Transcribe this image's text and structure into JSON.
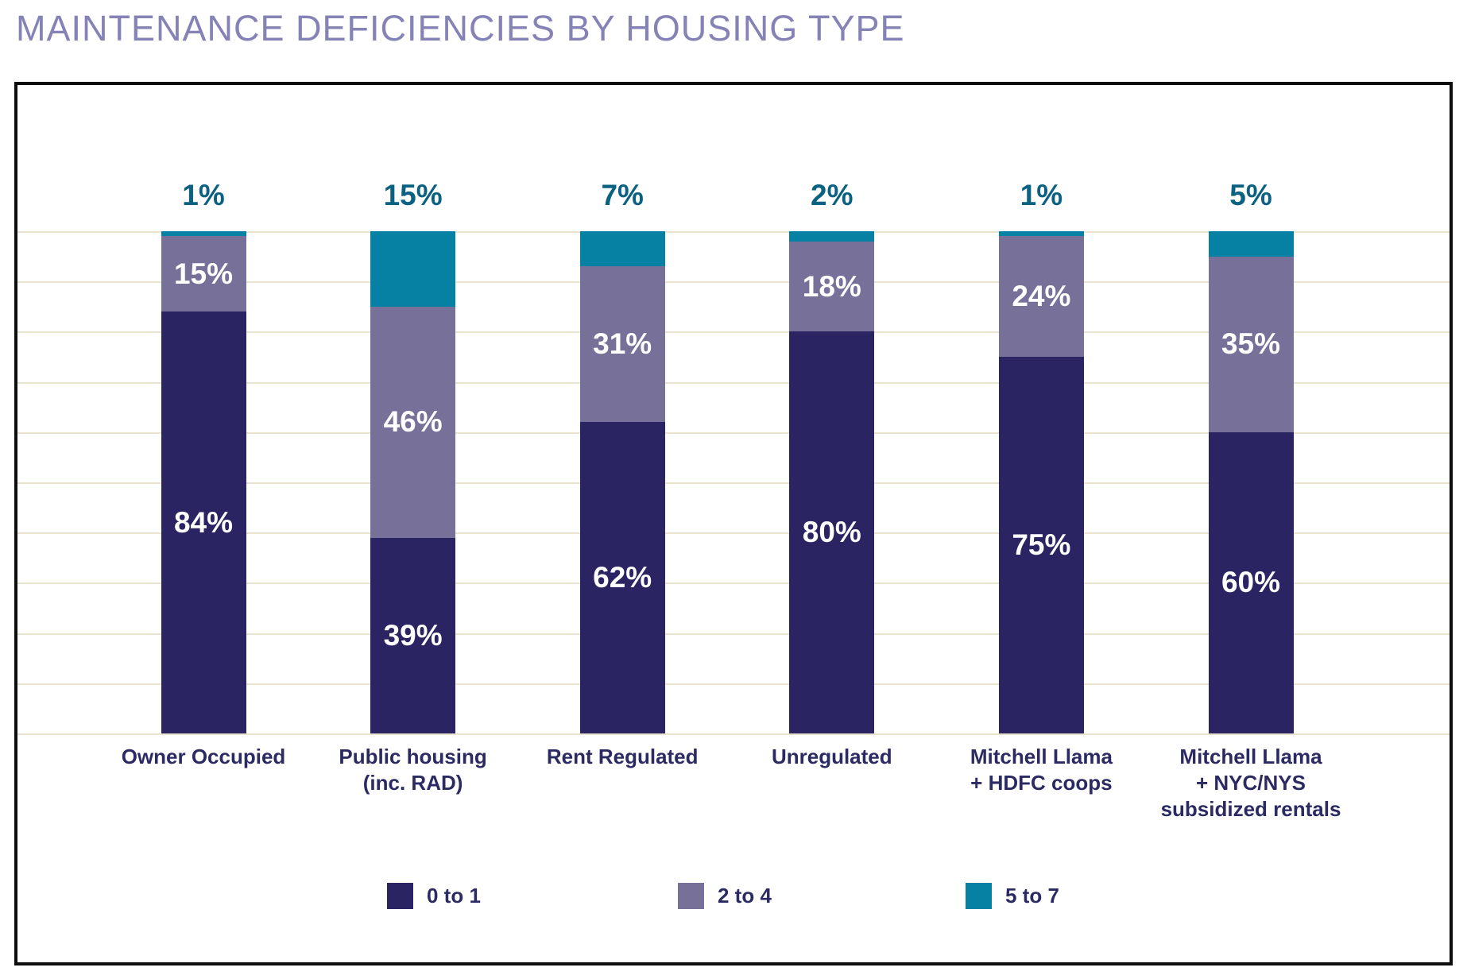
{
  "title": "MAINTENANCE DEFICIENCIES BY HOUSING TYPE",
  "colors": {
    "title_text": "#8583b5",
    "axis_label_text": "#2b2a63",
    "segment_label_text": "#ffffff",
    "above_bar_label_text": "#0b6181",
    "gridline": "#e9e3d0",
    "frame_border": "#0d0d0d",
    "background": "#ffffff"
  },
  "chart_data": {
    "type": "bar",
    "stacked": true,
    "title": "MAINTENANCE DEFICIENCIES BY HOUSING TYPE",
    "xlabel": "",
    "ylabel": "",
    "ylim": [
      0,
      100
    ],
    "gridline_interval": 10,
    "grid": true,
    "legend_position": "bottom",
    "value_suffix": "%",
    "categories": [
      "Owner Occupied",
      "Public housing\n(inc. RAD)",
      "Rent Regulated",
      "Unregulated",
      "Mitchell Llama\n+ HDFC coops",
      "Mitchell Llama\n+ NYC/NYS\nsubsidized rentals"
    ],
    "series": [
      {
        "name": "0 to 1",
        "color": "#2a2462",
        "label_placement": "inside",
        "values": [
          84,
          39,
          62,
          80,
          75,
          60
        ]
      },
      {
        "name": "2 to 4",
        "color": "#777199",
        "label_placement": "inside",
        "values": [
          15,
          46,
          31,
          18,
          24,
          35
        ]
      },
      {
        "name": "5 to 7",
        "color": "#0681a3",
        "label_placement": "above",
        "values": [
          1,
          15,
          7,
          2,
          1,
          5
        ]
      }
    ]
  }
}
